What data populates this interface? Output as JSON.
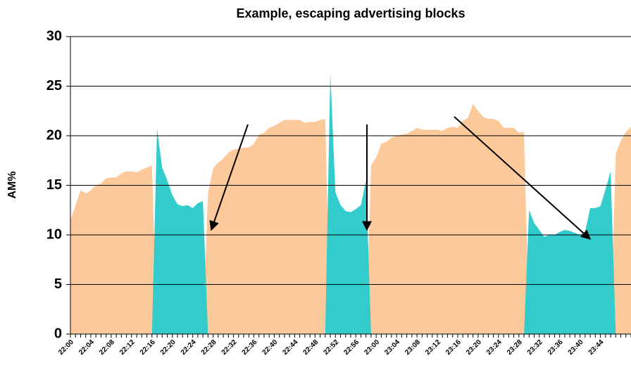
{
  "chart_data": {
    "type": "area",
    "title": "Example, escaping advertising blocks",
    "y_label": "AM%",
    "categories": [
      "22:00",
      null,
      null,
      null,
      "22:04",
      null,
      null,
      null,
      "22:08",
      null,
      null,
      null,
      "22:12",
      null,
      null,
      null,
      "22:16",
      null,
      null,
      null,
      "22:20",
      null,
      null,
      null,
      "22:24",
      null,
      null,
      null,
      "22:28",
      null,
      null,
      null,
      "22:32",
      null,
      null,
      null,
      "22:36",
      null,
      null,
      null,
      "22:40",
      null,
      null,
      null,
      "22:44",
      null,
      null,
      null,
      "22:48",
      null,
      null,
      null,
      "22:52",
      null,
      null,
      null,
      "22:56",
      null,
      null,
      null,
      "23:00",
      null,
      null,
      null,
      "23:04",
      null,
      null,
      null,
      "23:08",
      null,
      null,
      null,
      "23:12",
      null,
      null,
      null,
      "23:16",
      null,
      null,
      null,
      "23:20",
      null,
      null,
      null,
      "23:24",
      null,
      null,
      null,
      "23:28",
      null,
      null,
      null,
      "23:32",
      null,
      null,
      null,
      "23:36",
      null,
      null,
      null,
      "23:40",
      null,
      null,
      null,
      "23:44",
      null,
      null,
      null,
      null,
      null,
      null
    ],
    "series": [
      {
        "color": "#fcc99a",
        "values": [
          11.5,
          13,
          14.5,
          14.2,
          14.5,
          15,
          15.2,
          15.7,
          15.8,
          15.8,
          16.2,
          16.4,
          16.4,
          16.3,
          16.6,
          16.8,
          17,
          0,
          0,
          0,
          0,
          0,
          0,
          0,
          0,
          0,
          0,
          14.3,
          16.7,
          17.3,
          17.7,
          18.3,
          18.6,
          18.7,
          18.8,
          18.8,
          19.2,
          20.1,
          20.3,
          20.8,
          21,
          21.3,
          21.6,
          21.6,
          21.6,
          21.6,
          21.3,
          21.4,
          21.4,
          21.6,
          21.7,
          0,
          0,
          0,
          0,
          0,
          0,
          0,
          0,
          17,
          17.8,
          19.2,
          19.4,
          19.8,
          20,
          20.1,
          20.2,
          20.5,
          20.8,
          20.6,
          20.6,
          20.6,
          20.6,
          20.5,
          20.8,
          20.9,
          20.8,
          21.5,
          21.8,
          23.2,
          22.5,
          21.9,
          21.7,
          21.7,
          21.5,
          20.8,
          20.8,
          20.8,
          20.3,
          20.4,
          0,
          0,
          0,
          0,
          0,
          0,
          0,
          0,
          0,
          0,
          0,
          0,
          0,
          0,
          0,
          0,
          0,
          18.2,
          19.5,
          20.4,
          20.9
        ]
      },
      {
        "color": "#33cccc",
        "values": [
          0,
          0,
          0,
          0,
          0,
          0,
          0,
          0,
          0,
          0,
          0,
          0,
          0,
          0,
          0,
          0,
          0,
          20.7,
          16.8,
          15.5,
          14,
          13.1,
          12.9,
          13,
          12.7,
          13.2,
          13.4,
          0,
          0,
          0,
          0,
          0,
          0,
          0,
          0,
          0,
          0,
          0,
          0,
          0,
          0,
          0,
          0,
          0,
          0,
          0,
          0,
          0,
          0,
          0,
          0,
          26.3,
          14.3,
          13,
          12.4,
          12.3,
          12.6,
          13,
          15.5,
          0,
          0,
          0,
          0,
          0,
          0,
          0,
          0,
          0,
          0,
          0,
          0,
          0,
          0,
          0,
          0,
          0,
          0,
          0,
          0,
          0,
          0,
          0,
          0,
          0,
          0,
          0,
          0,
          0,
          0,
          0,
          12.5,
          11.2,
          10.5,
          9.8,
          10,
          10,
          10.3,
          10.5,
          10.4,
          10.2,
          10,
          10.3,
          12.7,
          12.7,
          12.9,
          14.6,
          16.4,
          0,
          0,
          0,
          0
        ]
      }
    ],
    "ylim": [
      0,
      30
    ],
    "yticks": [
      0,
      5,
      10,
      15,
      20,
      25,
      30
    ],
    "grid": true
  }
}
